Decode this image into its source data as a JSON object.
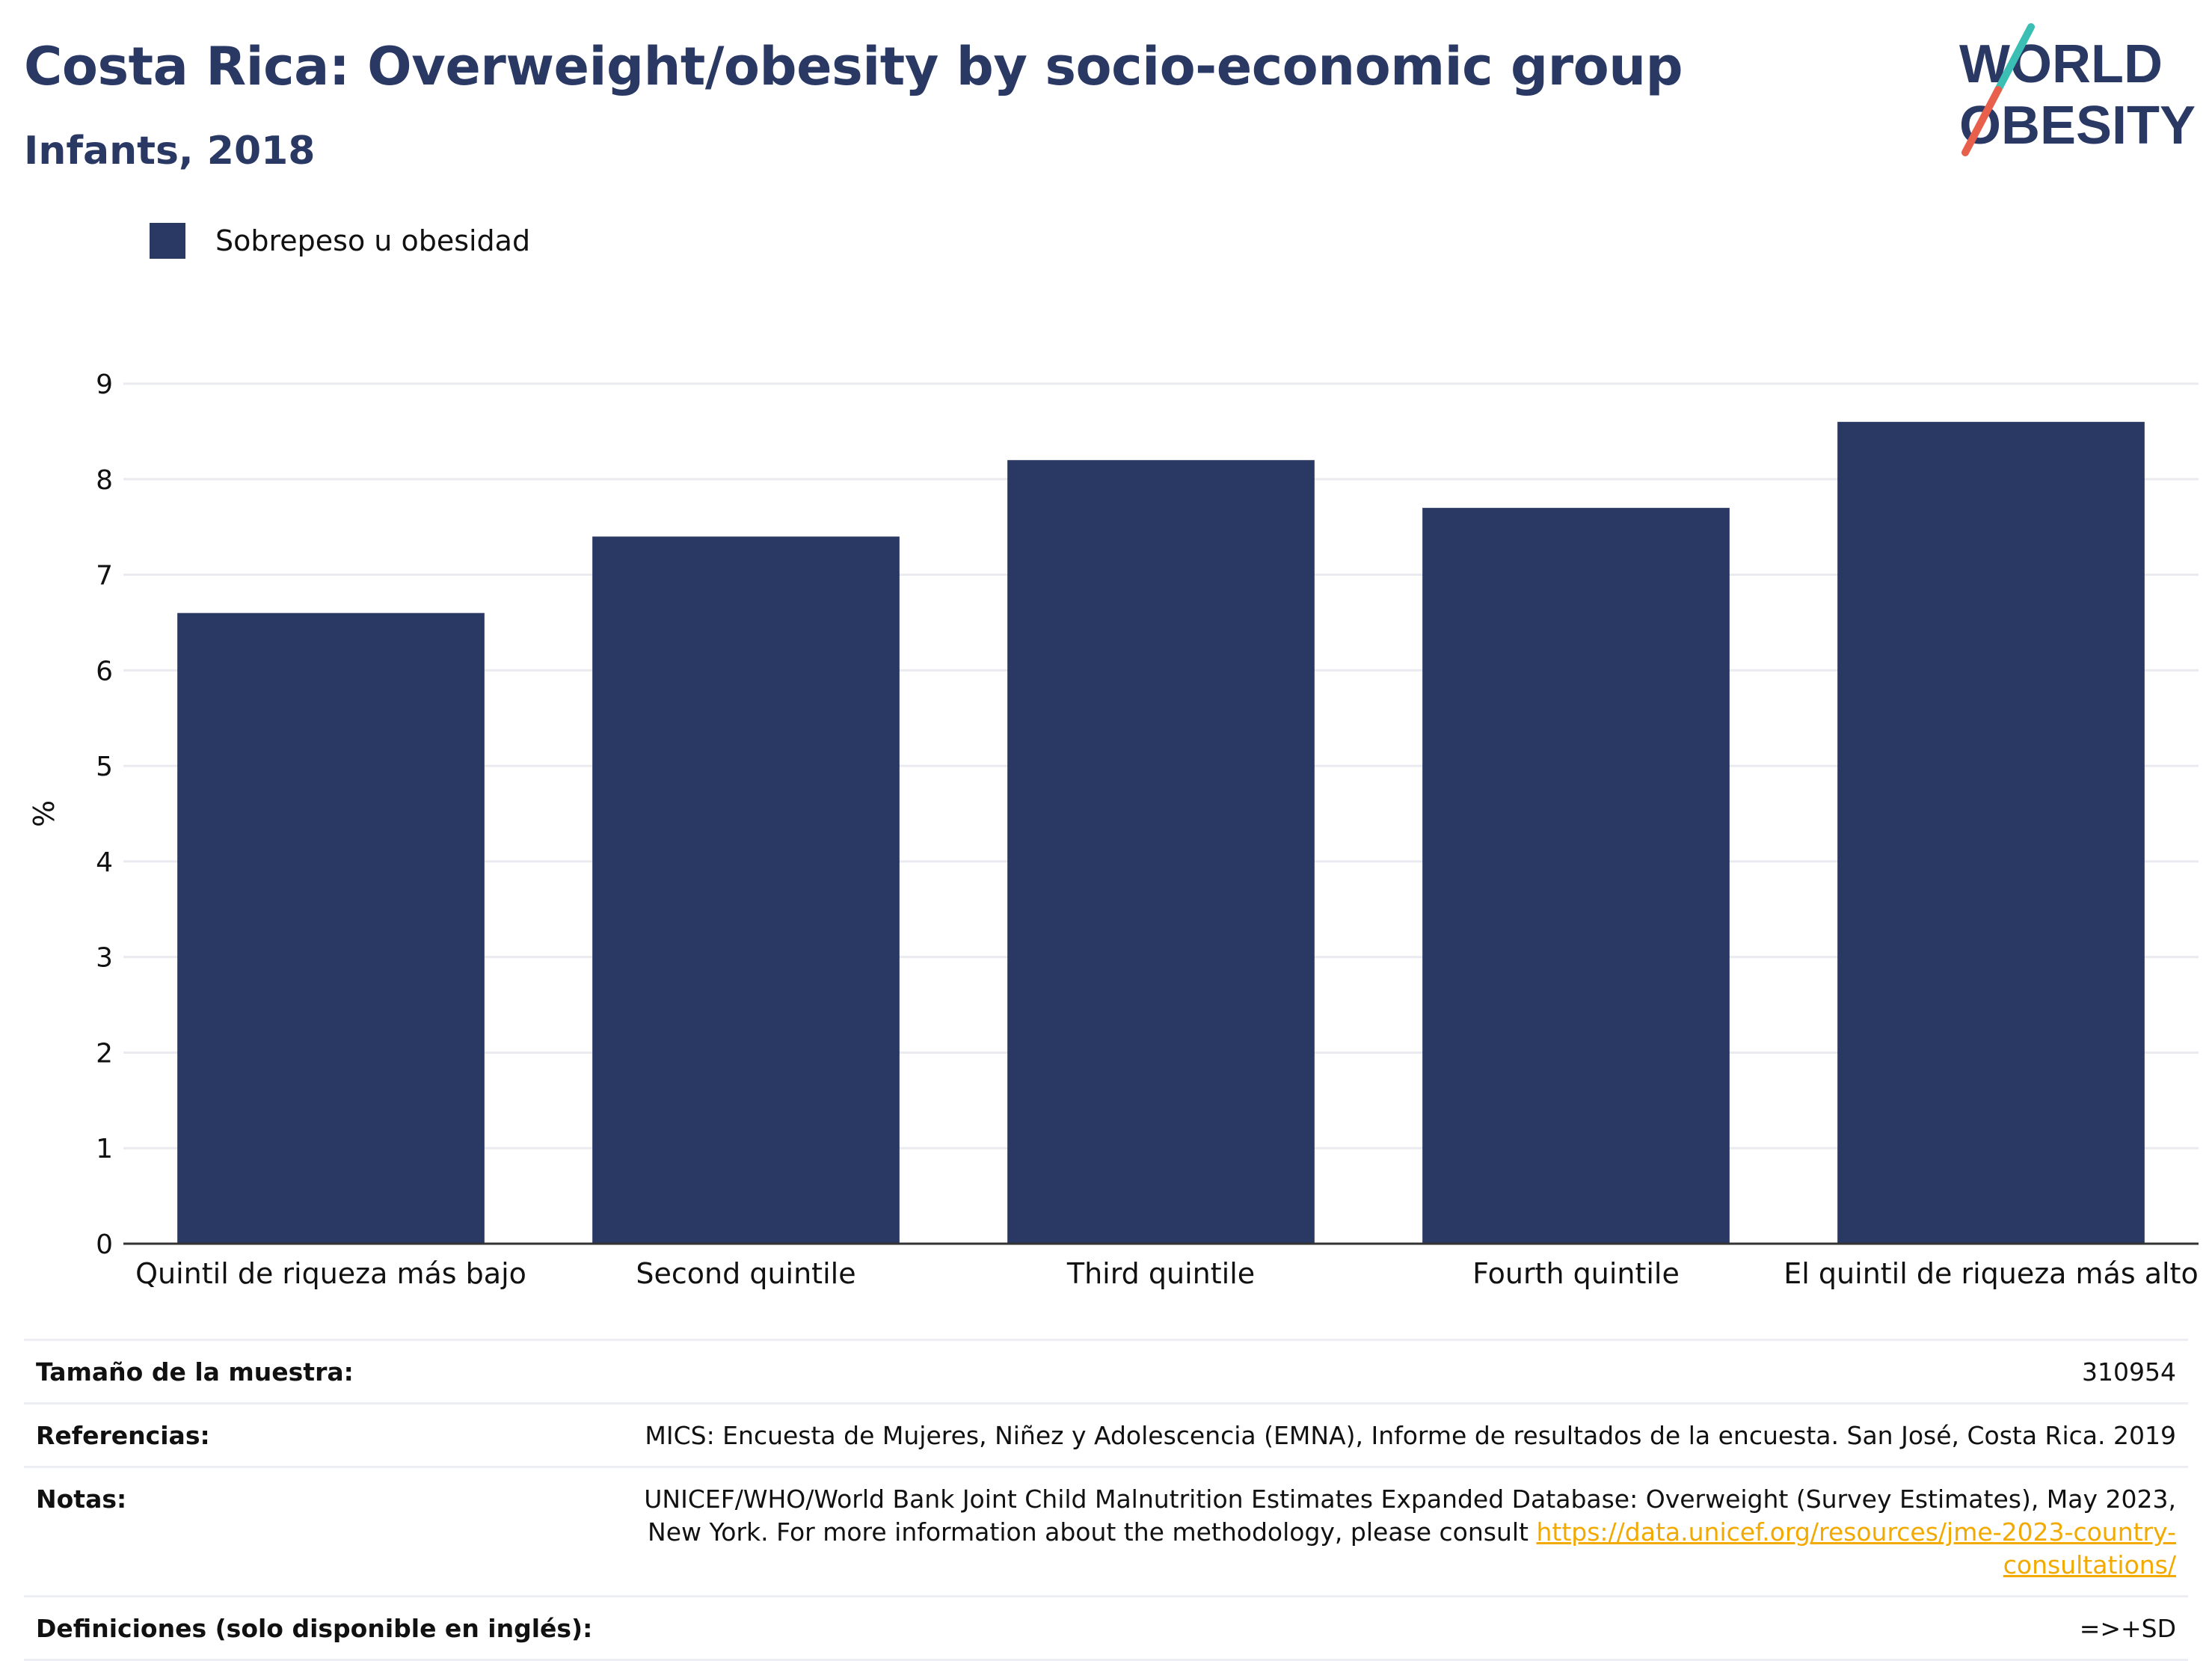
{
  "header": {
    "title": "Costa Rica: Overweight/obesity by socio-economic group",
    "subtitle": "Infants, 2018",
    "logo_text": "WORLD OBESITY"
  },
  "colors": {
    "bar": "#2a3864",
    "title": "#2a3864",
    "logo_red": "#e8604c",
    "logo_teal": "#3bbfb5",
    "link": "#f2a900"
  },
  "chart_data": {
    "type": "bar",
    "categories": [
      "Quintil de riqueza más bajo",
      "Second quintile",
      "Third quintile",
      "Fourth quintile",
      "El quintil de riqueza más alto"
    ],
    "series": [
      {
        "name": "Sobrepeso u obesidad",
        "values": [
          6.6,
          7.4,
          8.2,
          7.7,
          8.6
        ]
      }
    ],
    "ylabel": "%",
    "ylim": [
      0,
      9
    ],
    "yticks": [
      0,
      1,
      2,
      3,
      4,
      5,
      6,
      7,
      8,
      9
    ],
    "grid": true,
    "legend_position": "top-left"
  },
  "notes": {
    "sample_label": "Tamaño de la muestra:",
    "sample_value": "310954",
    "references_label": "Referencias:",
    "references_value": "MICS: Encuesta de Mujeres, Niñez y Adolescencia (EMNA), Informe de resultados de la encuesta. San José, Costa Rica. 2019",
    "notes_label": "Notas:",
    "notes_value": "UNICEF/WHO/World Bank Joint Child Malnutrition Estimates Expanded Database: Overweight (Survey Estimates), May 2023, New York. For more information about the methodology, please consult",
    "notes_link": "https://data.unicef.org/resources/jme-2023-country-consultations/",
    "definitions_label": "Definiciones (solo disponible en inglés):",
    "definitions_value": "=>+SD"
  }
}
